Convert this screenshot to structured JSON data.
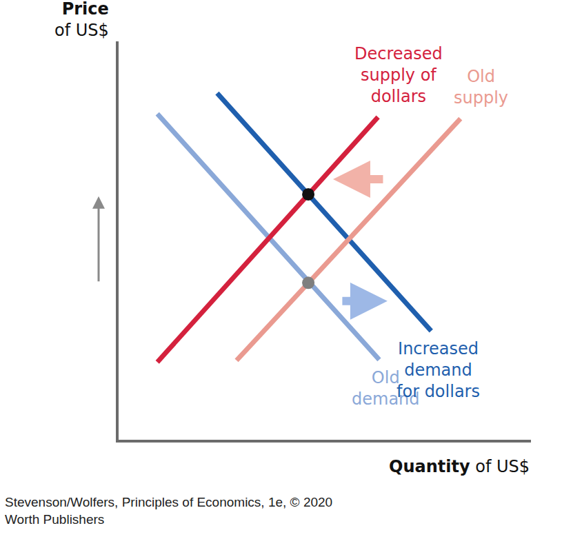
{
  "chart_data": {
    "type": "line",
    "y_label": "Price of US$",
    "x_label": "Quantity of US$",
    "source": "Stevenson/Wolfers, Principles of Economics, 1e, © 2020\nWorth Publishers",
    "xlim": [
      0,
      100
    ],
    "ylim": [
      0,
      100
    ],
    "xticks": [],
    "yticks": [],
    "tick_labels": false,
    "grid": false,
    "series": [
      {
        "name": "Old\ndemand",
        "color": "#8aa8d8",
        "type": "line",
        "x": [
          9.4,
          63.2
        ],
        "values": [
          81.8,
          20.1
        ]
      },
      {
        "name": "Increased\ndemand\nfor dollars",
        "color": "#1f5fae",
        "type": "line",
        "x": [
          23.9,
          75.8
        ],
        "values": [
          87.0,
          27.3
        ]
      },
      {
        "name": "Old\nsupply",
        "color": "#ea9a90",
        "type": "line",
        "x": [
          28.6,
          82.9
        ],
        "values": [
          19.9,
          80.6
        ]
      },
      {
        "name": "Decreased\nsupply of\ndollars",
        "color": "#d4213d",
        "type": "line",
        "x": [
          9.4,
          62.9
        ],
        "values": [
          19.5,
          81.0
        ]
      },
      {
        "color": "#7f7f7f",
        "type": "scatter",
        "marker": "circle",
        "x": [
          46.0
        ],
        "values": [
          39.4
        ]
      },
      {
        "color": "#111111",
        "type": "scatter",
        "marker": "circle",
        "x": [
          46.0
        ],
        "values": [
          61.6
        ]
      }
    ]
  }
}
